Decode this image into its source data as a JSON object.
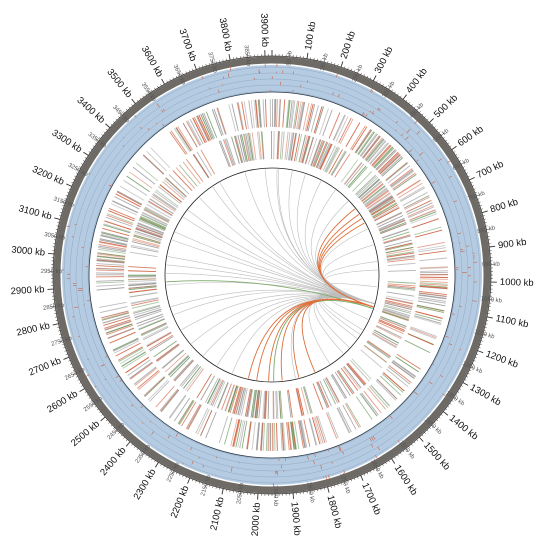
{
  "genome": {
    "length_kb": 3920,
    "major_labels": [
      "3900 kb",
      "100 kb",
      "200 kb",
      "300 kb",
      "400 kb",
      "500 kb",
      "600 kb",
      "700 kb",
      "800 kb",
      "900 kb",
      "1000 kb",
      "1100 kb",
      "1200 kb",
      "1300 kb",
      "1400 kb",
      "1500 kb",
      "1600 kb",
      "1700 kb",
      "1800 kb",
      "1900 kb",
      "2000 kb",
      "2100 kb",
      "2200 kb",
      "2300 kb",
      "2400 kb",
      "2500 kb",
      "2600 kb",
      "2700 kb",
      "2800 kb",
      "2900 kb",
      "3000 kb",
      "3100 kb",
      "3200 kb",
      "3300 kb",
      "3400 kb",
      "3500 kb",
      "3600 kb",
      "3700 kb",
      "3800 kb"
    ],
    "major_positions_kb": [
      3900,
      100,
      200,
      300,
      400,
      500,
      600,
      700,
      800,
      900,
      1000,
      1100,
      1200,
      1300,
      1400,
      1500,
      1600,
      1700,
      1800,
      1900,
      2000,
      2100,
      2200,
      2300,
      2400,
      2500,
      2600,
      2700,
      2800,
      2900,
      3000,
      3100,
      3200,
      3300,
      3400,
      3500,
      3600,
      3700,
      3800
    ],
    "minor_labels": [
      "50 kb",
      "150 kb",
      "250 kb",
      "350 kb",
      "450 kb",
      "550 kb",
      "650 kb",
      "750 kb",
      "850 kb",
      "950 kb",
      "1050 kb",
      "1150 kb",
      "1250 kb",
      "1350 kb",
      "1450 kb",
      "1550 kb",
      "1650 kb",
      "1750 kb",
      "1850 kb",
      "1950 kb",
      "2050 kb",
      "2150 kb",
      "2250 kb",
      "2350 kb",
      "2450 kb",
      "2550 kb",
      "2650 kb",
      "2750 kb",
      "2850 kb",
      "2950 kb",
      "3050 kb",
      "3150 kb",
      "3250 kb",
      "3350 kb",
      "3450 kb",
      "3550 kb",
      "3650 kb",
      "3750 kb",
      "3850 kb"
    ],
    "minor_positions_kb": [
      50,
      150,
      250,
      350,
      450,
      550,
      650,
      750,
      850,
      950,
      1050,
      1150,
      1250,
      1350,
      1450,
      1550,
      1650,
      1750,
      1850,
      1950,
      2050,
      2150,
      2250,
      2350,
      2450,
      2550,
      2650,
      2750,
      2850,
      2950,
      3050,
      3150,
      3250,
      3350,
      3450,
      3550,
      3650,
      3750,
      3850
    ]
  },
  "colors": {
    "ideogram": "#6e6a66",
    "blue_track": "#b5cbe2",
    "track_line": "#8fa9c4",
    "feature_red": "#d0603e",
    "feature_gray": "#9a9a9a",
    "feature_green": "#6f9c63",
    "link_gray": "#bdbdbd",
    "link_orange": "#e0703a",
    "link_green": "#7dab6a"
  },
  "links": {
    "hub_kb": 1150,
    "gray_partners_kb": [
      3880,
      3760,
      3600,
      3450,
      3300,
      3150,
      3000,
      2880,
      2700,
      2600,
      2500,
      2400,
      2300,
      2200,
      2100,
      1980,
      1900,
      1820,
      1700,
      1600,
      1500,
      1450,
      1380,
      1320,
      1250,
      700,
      800,
      900,
      40,
      120,
      200,
      300,
      400,
      500,
      3950,
      3550,
      3350,
      3200,
      3050,
      2750,
      2950,
      1350,
      1050,
      950
    ],
    "orange_partners_kb": [
      600,
      630,
      560,
      660,
      1900,
      1980,
      1800,
      2050,
      1700,
      2100
    ],
    "green_partners_kb": [
      2900,
      1950
    ]
  }
}
